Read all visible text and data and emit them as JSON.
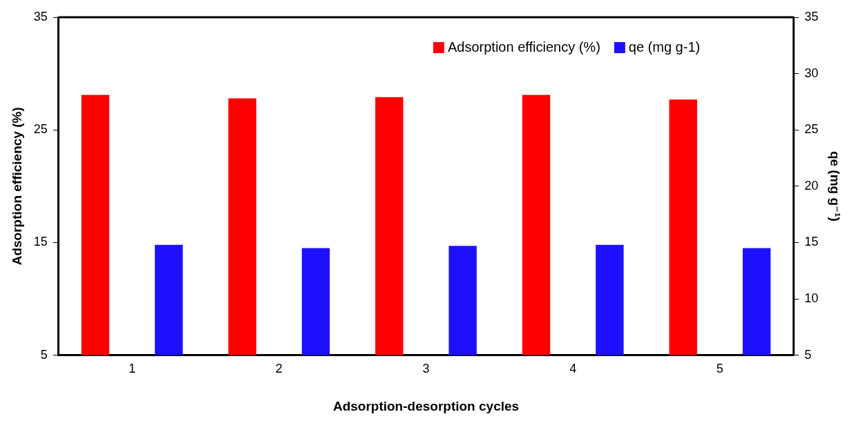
{
  "chart_data": {
    "type": "bar",
    "xlabel": "Adsorption-desorption cycles",
    "ylabel": "Adsorption efficiency (%)",
    "y2label": "qe (mg g⁻¹)",
    "categories": [
      "1",
      "2",
      "3",
      "4",
      "5"
    ],
    "series": [
      {
        "name": "Adsorption efficiency (%)",
        "color": "#ff0000",
        "values": [
          28.1,
          27.8,
          27.9,
          28.1,
          27.7
        ]
      },
      {
        "name": "qe (mg g-1)",
        "color": "#1f0fff",
        "values": [
          14.8,
          14.5,
          14.7,
          14.8,
          14.5
        ],
        "axis": "y2"
      }
    ],
    "ylim": [
      5,
      35
    ],
    "yticks": [
      5,
      15,
      25,
      35
    ],
    "y2lim": [
      5,
      35
    ],
    "y2ticks": [
      5,
      10,
      15,
      20,
      25,
      30,
      35
    ],
    "grid": false,
    "legend": "top right"
  }
}
